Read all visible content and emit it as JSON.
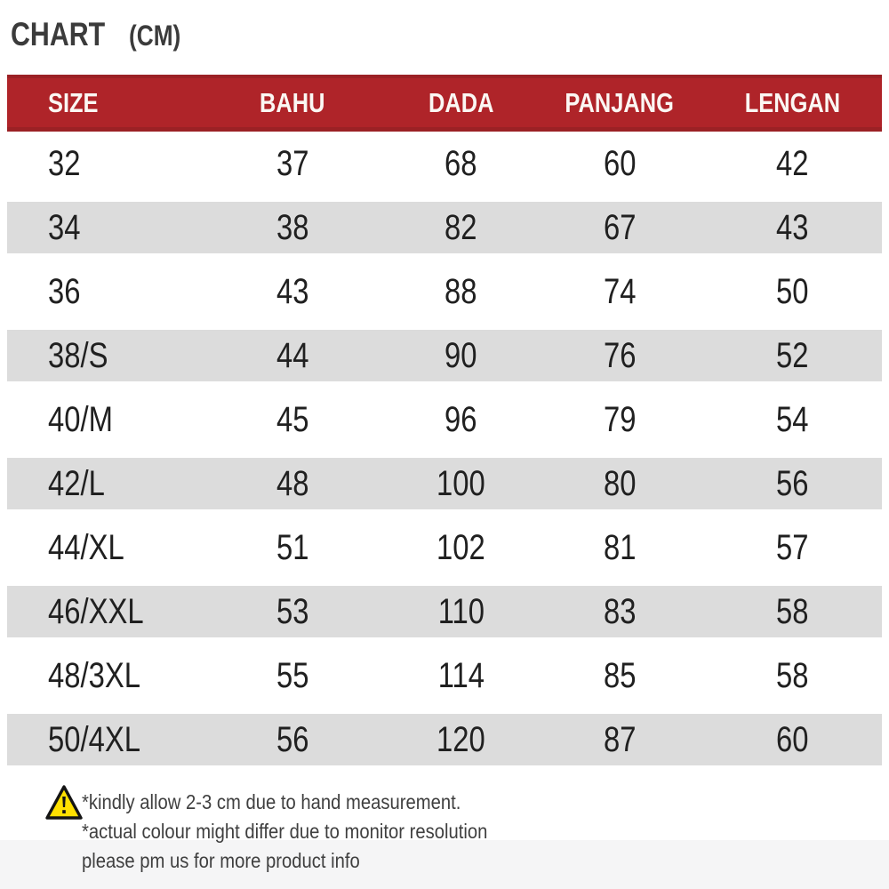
{
  "chart_data": {
    "type": "table",
    "title": "CHART (CM)",
    "columns": [
      "SIZE",
      "BAHU",
      "DADA",
      "PANJANG",
      "LENGAN"
    ],
    "rows": [
      [
        "32",
        "37",
        "68",
        "60",
        "42"
      ],
      [
        "34",
        "38",
        "82",
        "67",
        "43"
      ],
      [
        "36",
        "43",
        "88",
        "74",
        "50"
      ],
      [
        "38/S",
        "44",
        "90",
        "76",
        "52"
      ],
      [
        "40/M",
        "45",
        "96",
        "79",
        "54"
      ],
      [
        "42/L",
        "48",
        "100",
        "80",
        "56"
      ],
      [
        "44/XL",
        "51",
        "102",
        "81",
        "57"
      ],
      [
        "46/XXL",
        "53",
        "110",
        "83",
        "58"
      ],
      [
        "48/3XL",
        "55",
        "114",
        "85",
        "58"
      ],
      [
        "50/4XL",
        "56",
        "120",
        "87",
        "60"
      ]
    ],
    "layout": {
      "zebra_stripes": true,
      "header_fill": "dark-red",
      "units": "cm"
    }
  },
  "title": {
    "main": "CHART",
    "unit": "(CM)"
  },
  "notes": {
    "lines": [
      "*kindly allow 2-3 cm due to hand measurement.",
      "*actual colour might differ due to monitor resolution",
      "please pm us for more product info"
    ]
  },
  "icons": {
    "warning": "warning-triangle-icon"
  },
  "colors": {
    "header_bg": "#af2429",
    "header_border": "#9b2125",
    "header_text": "#fbf7f3",
    "stripe": "#dcdcdc",
    "row_text": "#202020",
    "title_text": "#3b3b3b",
    "note_text": "#3f3f3f",
    "footer_band": "#f5f5f6",
    "warning_fill": "#ffe000",
    "warning_stroke": "#141414"
  }
}
